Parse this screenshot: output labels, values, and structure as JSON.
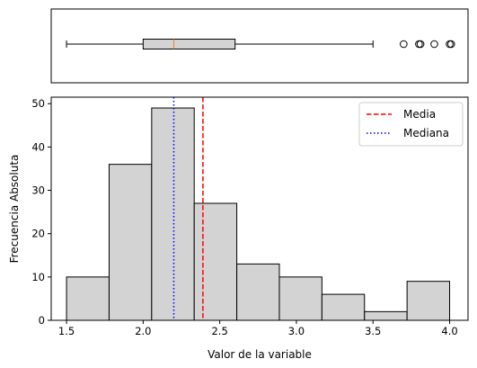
{
  "chart_data": [
    {
      "type": "boxplot",
      "orientation": "horizontal",
      "xlim": [
        1.4,
        4.12
      ],
      "ticks_visible": false,
      "whisker_low": 1.5,
      "q1": 2.0,
      "median": 2.2,
      "q3": 2.6,
      "whisker_high": 3.5,
      "outliers": [
        3.7,
        3.8,
        3.81,
        3.9,
        4.0,
        4.01
      ],
      "colors": {
        "box_fill": "#d3d3d3",
        "median_line": "#ff7f0e",
        "edge": "#000000"
      }
    },
    {
      "type": "bar",
      "subtype": "histogram",
      "xlabel": "Valor de la variable",
      "ylabel": "Frecuencia Absoluta",
      "xlim": [
        1.4,
        4.12
      ],
      "ylim": [
        0,
        51.5
      ],
      "xticks": [
        1.5,
        2.0,
        2.5,
        3.0,
        3.5,
        4.0
      ],
      "xtick_labels": [
        "1.5",
        "2.0",
        "2.5",
        "3.0",
        "3.5",
        "4.0"
      ],
      "yticks": [
        0,
        10,
        20,
        30,
        40,
        50
      ],
      "ytick_labels": [
        "0",
        "10",
        "20",
        "30",
        "40",
        "50"
      ],
      "bin_edges": [
        1.5,
        1.7778,
        2.0556,
        2.3333,
        2.6111,
        2.8889,
        3.1667,
        3.4444,
        3.7222,
        4.0
      ],
      "values": [
        10,
        36,
        49,
        27,
        13,
        10,
        6,
        2,
        9
      ],
      "mean": 2.39,
      "median": 2.2,
      "legend": {
        "placement": "upper right",
        "entries": [
          {
            "label": "Media",
            "color": "#ff0000",
            "style": "dashed"
          },
          {
            "label": "Mediana",
            "color": "#0000ff",
            "style": "dotted"
          }
        ]
      },
      "colors": {
        "bar_fill": "#d3d3d3",
        "bar_edge": "#000000"
      }
    }
  ]
}
